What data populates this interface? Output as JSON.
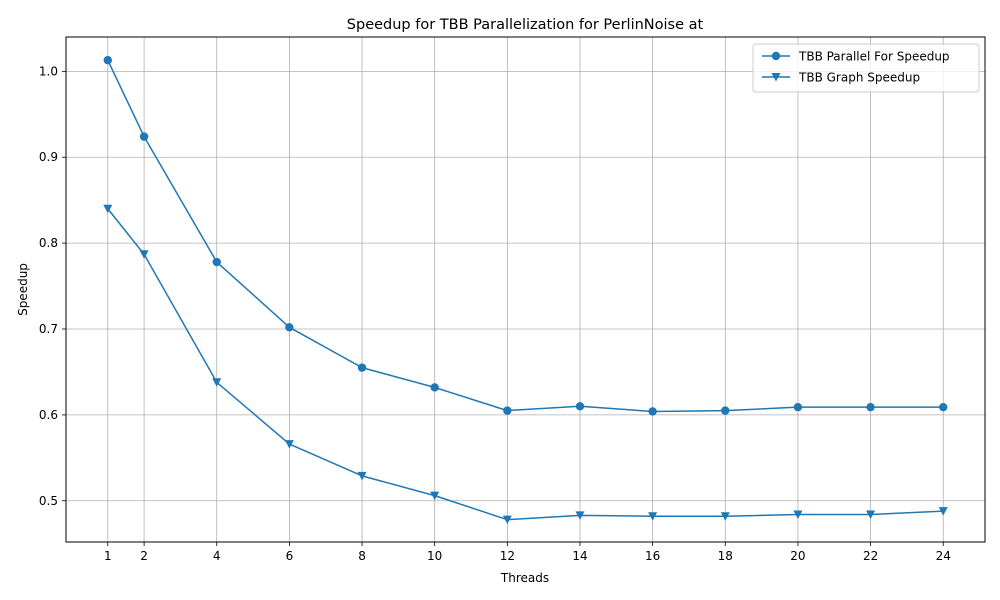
{
  "chart_data": {
    "type": "line",
    "title": "Speedup for TBB Parallelization for PerlinNoise at",
    "xlabel": "Threads",
    "ylabel": "Speedup",
    "x": [
      1,
      2,
      4,
      6,
      8,
      10,
      12,
      14,
      16,
      18,
      20,
      22,
      24
    ],
    "xticks": [
      1,
      2,
      4,
      6,
      8,
      10,
      12,
      14,
      16,
      18,
      20,
      22,
      24
    ],
    "yticks": [
      0.5,
      0.6,
      0.7,
      0.8,
      0.9,
      1.0
    ],
    "ytick_labels": [
      "0.5",
      "0.6",
      "0.7",
      "0.8",
      "0.9",
      "1.0"
    ],
    "xlim": [
      -0.15,
      25.15
    ],
    "ylim": [
      0.452,
      1.04
    ],
    "grid": true,
    "legend_position": "top-right",
    "color": "#1f77b4",
    "series": [
      {
        "name": "TBB Parallel For Speedup",
        "marker": "circle",
        "values": [
          1.013,
          0.924,
          0.778,
          0.702,
          0.655,
          0.632,
          0.605,
          0.61,
          0.604,
          0.605,
          0.609,
          0.609,
          0.609
        ]
      },
      {
        "name": "TBB Graph Speedup",
        "marker": "triangle-down",
        "values": [
          0.84,
          0.787,
          0.638,
          0.566,
          0.529,
          0.506,
          0.478,
          0.483,
          0.482,
          0.482,
          0.484,
          0.484,
          0.488
        ]
      }
    ]
  }
}
